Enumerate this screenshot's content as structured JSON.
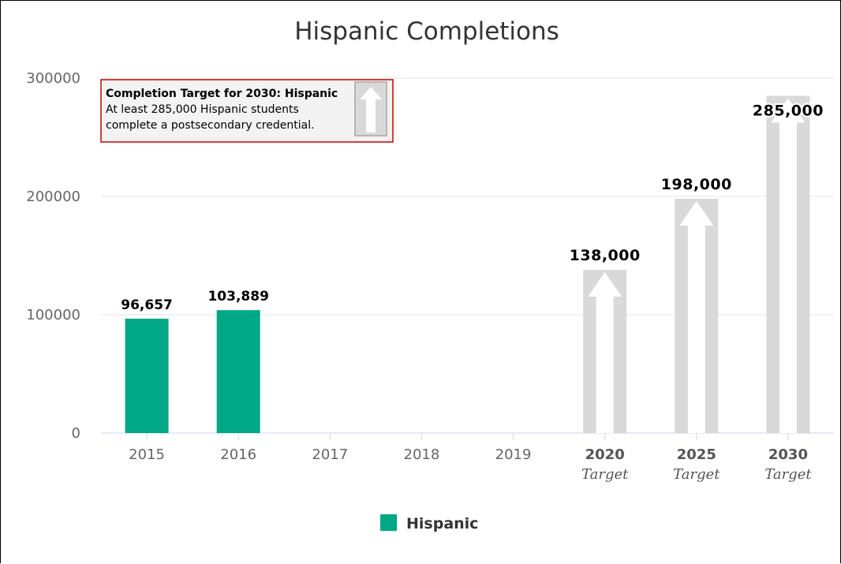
{
  "chart_data": {
    "type": "bar",
    "title": "Hispanic Completions",
    "xlabel": "",
    "ylabel": "",
    "ylim": [
      0,
      300000
    ],
    "yticks": [
      0,
      100000,
      200000,
      300000
    ],
    "ytick_labels": [
      "0",
      "100000",
      "200000",
      "300000"
    ],
    "grid": true,
    "categories": [
      "2015",
      "2016",
      "2017",
      "2018",
      "2019",
      "2020",
      "2025",
      "2030"
    ],
    "category_sublabels": [
      "",
      "",
      "",
      "",
      "",
      "Target",
      "Target",
      "Target"
    ],
    "series": [
      {
        "name": "Hispanic",
        "color": "#00a887",
        "values": [
          96657,
          103889,
          null,
          null,
          null,
          null,
          null,
          null
        ],
        "data_labels": [
          "96,657",
          "103,889",
          "",
          "",
          "",
          "",
          "",
          ""
        ]
      }
    ],
    "targets": {
      "color": "#d9d9d9",
      "values": [
        null,
        null,
        null,
        null,
        null,
        138000,
        198000,
        285000
      ],
      "data_labels": [
        "",
        "",
        "",
        "",
        "",
        "138,000",
        "198,000",
        "285,000"
      ]
    },
    "legend": {
      "placement": "bottom-center",
      "entries": [
        "Hispanic"
      ]
    },
    "annotation": {
      "title": "Completion Target for 2030: Hispanic",
      "lines": [
        "At least 285,000 Hispanic students",
        "complete a postsecondary credential."
      ],
      "border_color": "#cc0000",
      "placement": "top-left"
    }
  }
}
